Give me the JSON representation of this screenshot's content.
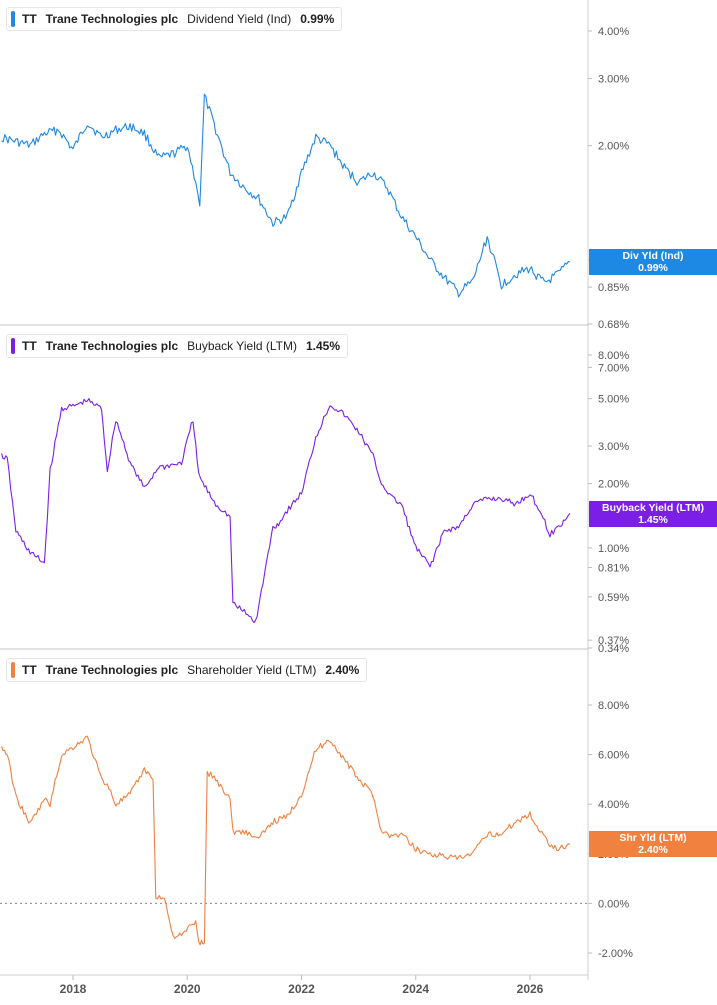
{
  "chart_data": [
    {
      "type": "line",
      "ticker": "TT",
      "company": "Trane Technologies plc",
      "metric": "Dividend Yield (Ind)",
      "last_value": "0.99%",
      "tag_label": "Div Yld (Ind)",
      "color": "#1e88e5",
      "scale": "log",
      "y_ticks": [
        "4.00%",
        "3.00%",
        "2.00%",
        "1.00%",
        "0.85%",
        "0.68%"
      ],
      "series": [
        {
          "x": [
            2016.75,
            2017.0,
            2017.25,
            2017.5,
            2017.75,
            2018.0,
            2018.25,
            2018.5,
            2018.75,
            2019.0,
            2019.25,
            2019.5,
            2019.75,
            2020.0,
            2020.15,
            2020.22,
            2020.3,
            2020.5,
            2020.75,
            2021.0,
            2021.25,
            2021.5,
            2021.75,
            2022.0,
            2022.25,
            2022.5,
            2022.75,
            2023.0,
            2023.25,
            2023.5,
            2023.75,
            2024.0,
            2024.25,
            2024.5,
            2024.75,
            2025.0,
            2025.25,
            2025.5,
            2025.75,
            2026.0,
            2026.25,
            2026.5,
            2026.7
          ],
          "y": [
            2.1,
            2.05,
            2.0,
            2.15,
            2.2,
            1.95,
            2.3,
            2.1,
            2.2,
            2.25,
            2.15,
            1.85,
            1.9,
            2.0,
            1.6,
            1.4,
            2.7,
            2.2,
            1.7,
            1.55,
            1.45,
            1.25,
            1.3,
            1.7,
            2.1,
            2.0,
            1.75,
            1.6,
            1.7,
            1.55,
            1.3,
            1.15,
            1.0,
            0.9,
            0.82,
            0.88,
            1.15,
            0.86,
            0.92,
            0.95,
            0.87,
            0.92,
            0.99
          ]
        }
      ]
    },
    {
      "type": "line",
      "ticker": "TT",
      "company": "Trane Technologies plc",
      "metric": "Buyback Yield (LTM)",
      "last_value": "1.45%",
      "tag_label": "Buyback Yield (LTM)",
      "color": "#7b1fe6",
      "scale": "log",
      "y_ticks": [
        "8.00%",
        "7.00%",
        "5.00%",
        "3.00%",
        "2.00%",
        "1.00%",
        "0.81%",
        "0.59%",
        "0.37%",
        "0.34%"
      ],
      "series": [
        {
          "x": [
            2016.75,
            2016.85,
            2017.0,
            2017.25,
            2017.5,
            2017.6,
            2017.8,
            2018.0,
            2018.25,
            2018.5,
            2018.6,
            2018.75,
            2019.0,
            2019.25,
            2019.5,
            2019.6,
            2019.9,
            2020.1,
            2020.2,
            2020.3,
            2020.5,
            2020.75,
            2020.8,
            2021.0,
            2021.2,
            2021.3,
            2021.5,
            2021.6,
            2021.75,
            2022.0,
            2022.25,
            2022.5,
            2022.75,
            2023.0,
            2023.25,
            2023.4,
            2023.6,
            2023.75,
            2024.0,
            2024.25,
            2024.5,
            2024.75,
            2025.0,
            2025.25,
            2025.5,
            2025.75,
            2026.0,
            2026.2,
            2026.35,
            2026.5,
            2026.7
          ],
          "y": [
            2.7,
            2.6,
            1.2,
            0.95,
            0.85,
            2.3,
            4.5,
            4.6,
            4.9,
            4.5,
            2.3,
            4.0,
            2.5,
            1.9,
            2.4,
            2.4,
            2.5,
            4.0,
            2.2,
            1.95,
            1.6,
            1.4,
            0.55,
            0.5,
            0.45,
            0.63,
            1.25,
            1.3,
            1.5,
            1.8,
            3.3,
            4.7,
            4.2,
            3.5,
            2.7,
            2.0,
            1.7,
            1.6,
            1.0,
            0.82,
            1.2,
            1.25,
            1.6,
            1.7,
            1.7,
            1.6,
            1.8,
            1.45,
            1.15,
            1.25,
            1.45
          ]
        }
      ]
    },
    {
      "type": "line",
      "ticker": "TT",
      "company": "Trane Technologies plc",
      "metric": "Shareholder Yield (LTM)",
      "last_value": "2.40%",
      "tag_label": "Shr Yld (LTM)",
      "color": "#f0813e",
      "scale": "linear",
      "y_ticks": [
        "8.00%",
        "6.00%",
        "4.00%",
        "2.00%",
        "0.00%",
        "-2.00%"
      ],
      "ylim": [
        -2.4,
        9.0
      ],
      "x_ticks": [
        "2018",
        "2020",
        "2022",
        "2024",
        "2026"
      ],
      "series": [
        {
          "x": [
            2016.75,
            2016.85,
            2017.0,
            2017.25,
            2017.5,
            2017.6,
            2017.8,
            2018.0,
            2018.25,
            2018.5,
            2018.6,
            2018.75,
            2019.0,
            2019.25,
            2019.4,
            2019.45,
            2019.6,
            2019.75,
            2019.9,
            2020.15,
            2020.2,
            2020.3,
            2020.35,
            2020.5,
            2020.75,
            2020.8,
            2021.0,
            2021.25,
            2021.5,
            2021.75,
            2022.0,
            2022.25,
            2022.5,
            2022.75,
            2023.0,
            2023.25,
            2023.4,
            2023.6,
            2023.75,
            2024.0,
            2024.25,
            2024.5,
            2024.75,
            2025.0,
            2025.25,
            2025.5,
            2025.75,
            2026.0,
            2026.15,
            2026.35,
            2026.5,
            2026.7
          ],
          "y": [
            6.3,
            6.0,
            4.3,
            3.2,
            4.2,
            4.0,
            6.0,
            6.3,
            6.7,
            5.0,
            4.8,
            4.0,
            4.4,
            5.4,
            5.0,
            0.3,
            0.2,
            -1.3,
            -1.3,
            -0.7,
            -1.6,
            -1.6,
            5.3,
            5.0,
            4.2,
            2.9,
            2.9,
            2.6,
            3.3,
            3.5,
            4.4,
            6.2,
            6.6,
            5.8,
            5.0,
            4.4,
            2.9,
            2.7,
            2.8,
            2.2,
            2.0,
            1.9,
            1.8,
            2.0,
            2.8,
            2.8,
            3.3,
            3.6,
            3.0,
            2.4,
            2.2,
            2.4
          ]
        }
      ]
    }
  ]
}
